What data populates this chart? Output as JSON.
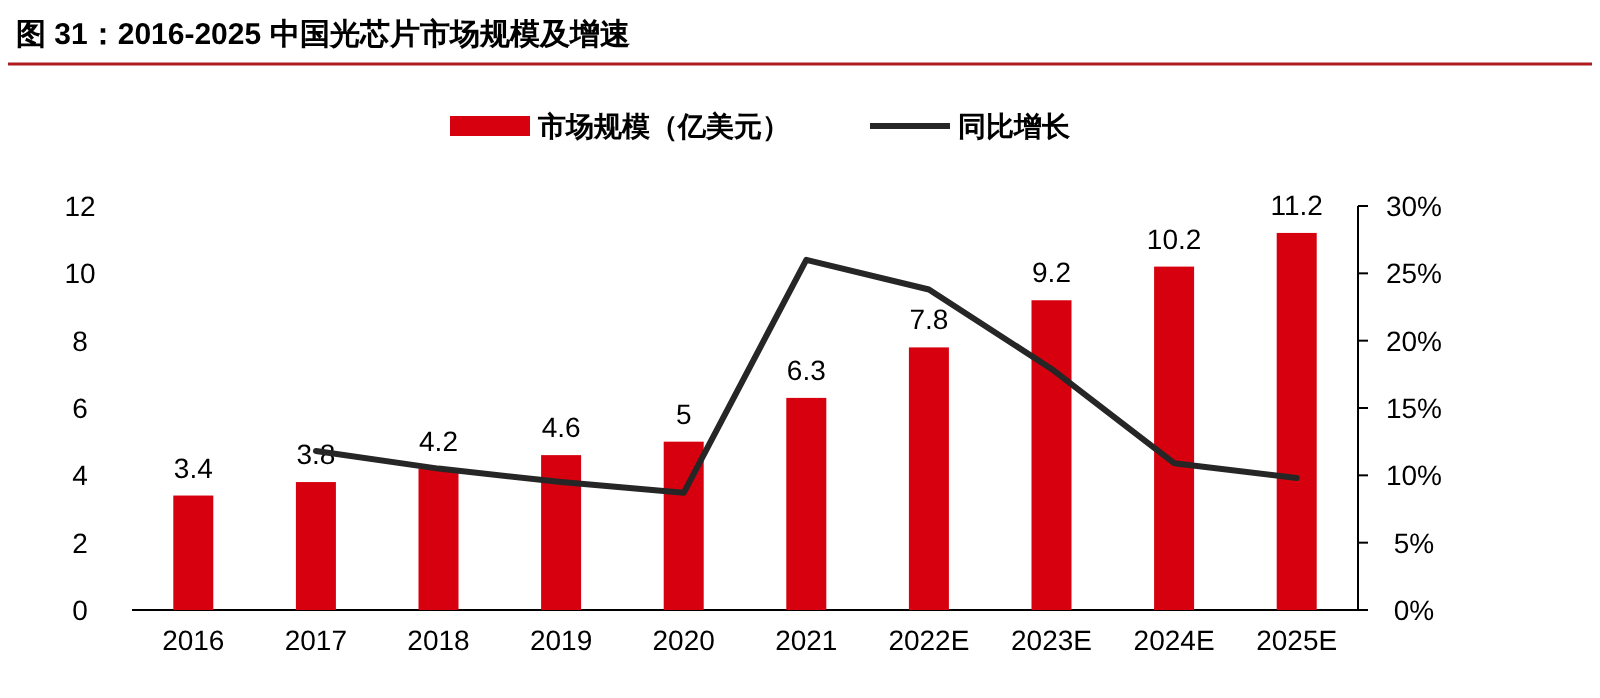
{
  "chart_data": {
    "type": "bar",
    "title": "图 31：2016-2025 中国光芯片市场规模及增速",
    "categories": [
      "2016",
      "2017",
      "2018",
      "2019",
      "2020",
      "2021",
      "2022E",
      "2023E",
      "2024E",
      "2025E"
    ],
    "series": [
      {
        "name": "市场规模（亿美元）",
        "color": "#d7000f",
        "values": [
          3.4,
          3.8,
          4.2,
          4.6,
          5,
          6.3,
          7.8,
          9.2,
          10.2,
          11.2
        ],
        "value_labels": [
          "3.4",
          "3.8",
          "4.2",
          "4.6",
          "5",
          "6.3",
          "7.8",
          "9.2",
          "10.2",
          "11.2"
        ]
      },
      {
        "name": "同比增长",
        "type": "line",
        "axis": "y2",
        "color": "#262626",
        "values": [
          null,
          11.8,
          10.5,
          9.5,
          8.7,
          26.0,
          23.8,
          17.9,
          10.9,
          9.8
        ]
      }
    ],
    "ylim": [
      0,
      12
    ],
    "yticks": [
      0,
      2,
      4,
      6,
      8,
      10,
      12
    ],
    "y2lim": [
      0,
      30
    ],
    "y2ticks": [
      {
        "value": 0,
        "label": "0%"
      },
      {
        "value": 5,
        "label": "5%"
      },
      {
        "value": 10,
        "label": "10%"
      },
      {
        "value": 15,
        "label": "15%"
      },
      {
        "value": 20,
        "label": "20%"
      },
      {
        "value": 25,
        "label": "25%"
      },
      {
        "value": 30,
        "label": "30%"
      }
    ],
    "legend": "top",
    "grid": false,
    "marker": "none",
    "line_style": "solid"
  }
}
